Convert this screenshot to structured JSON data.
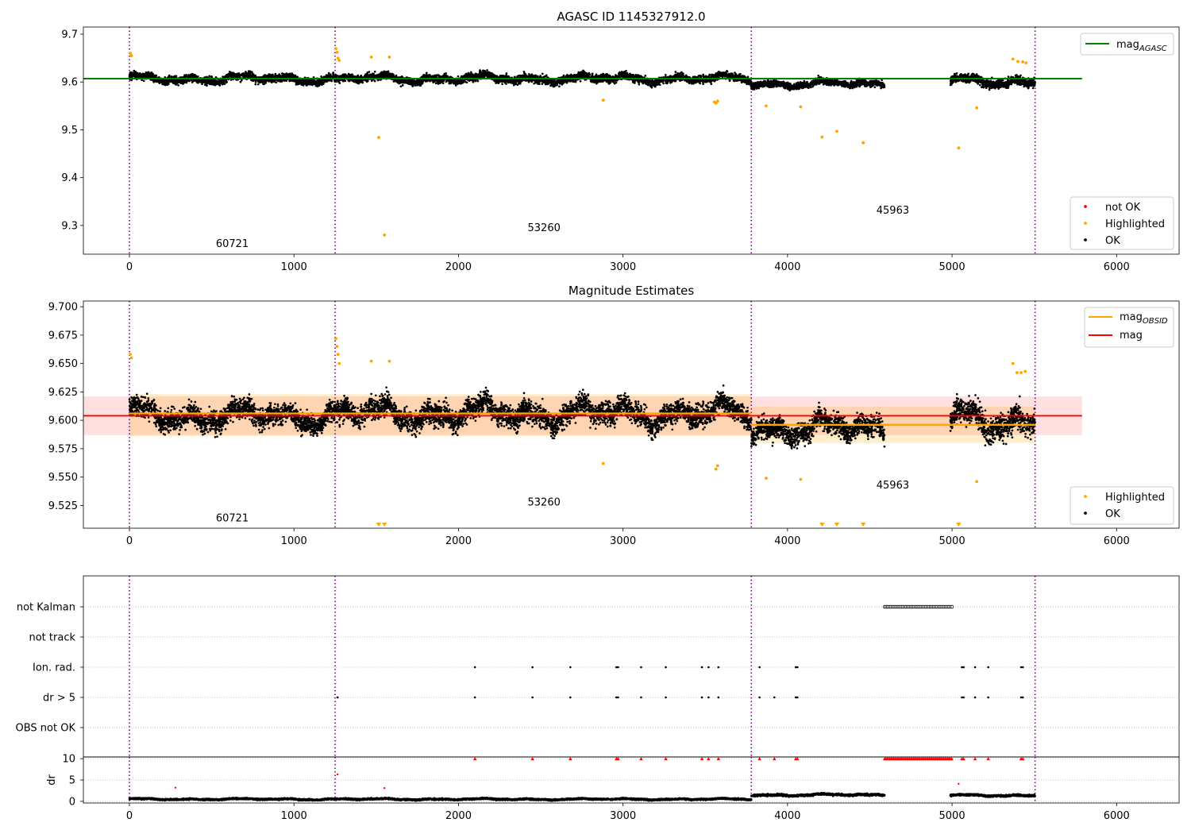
{
  "chart_data": [
    {
      "type": "scatter",
      "title": "AGASC ID 1145327912.0",
      "xlabel": "",
      "ylabel": "",
      "xlim": [
        -280,
        6380
      ],
      "ylim": [
        9.24,
        9.715
      ],
      "xticks": [
        0,
        1000,
        2000,
        3000,
        4000,
        5000,
        6000
      ],
      "yticks": [
        9.3,
        9.4,
        9.5,
        9.6,
        9.7
      ],
      "y_decimals": 1,
      "grid": false,
      "legend_top": {
        "placement": "upper-right",
        "entries": [
          {
            "label_main": "mag",
            "label_sub": "AGASC",
            "color": "#008000",
            "marker": "line"
          }
        ]
      },
      "legend_bottom": {
        "placement": "lower-right",
        "entries": [
          {
            "label": "not OK",
            "color": "#ff0000",
            "marker": "dot"
          },
          {
            "label": "Highlighted",
            "color": "#ffa500",
            "marker": "dot"
          },
          {
            "label": "OK",
            "color": "#000000",
            "marker": "dot"
          }
        ]
      },
      "vlines": [
        0,
        1250,
        3780,
        5505
      ],
      "obsid_labels": [
        {
          "text": "60721",
          "x": 625,
          "y": 9.255
        },
        {
          "text": "53260",
          "x": 2520,
          "y": 9.288
        },
        {
          "text": "45963",
          "x": 4640,
          "y": 9.325
        }
      ],
      "reference_line": {
        "name": "mag_AGASC",
        "value": 9.607,
        "x_range": [
          -280,
          5790
        ],
        "color": "#008000"
      },
      "ok_clusters": [
        {
          "x": [
            0,
            1250
          ],
          "center": 9.607,
          "spread": 0.012
        },
        {
          "x": [
            1250,
            3780
          ],
          "center": 9.607,
          "spread": 0.012
        },
        {
          "x": [
            3780,
            4590
          ],
          "center": 9.596,
          "spread": 0.01
        },
        {
          "x": [
            4990,
            5505
          ],
          "center": 9.602,
          "spread": 0.014
        }
      ],
      "highlighted_points": [
        [
          5,
          9.66
        ],
        [
          12,
          9.655
        ],
        [
          1255,
          9.67
        ],
        [
          1262,
          9.662
        ],
        [
          1268,
          9.65
        ],
        [
          1275,
          9.645
        ],
        [
          1470,
          9.652
        ],
        [
          1515,
          9.484
        ],
        [
          1550,
          9.28
        ],
        [
          1580,
          9.652
        ],
        [
          2880,
          9.562
        ],
        [
          3555,
          9.558
        ],
        [
          3565,
          9.556
        ],
        [
          3575,
          9.56
        ],
        [
          3870,
          9.55
        ],
        [
          4080,
          9.548
        ],
        [
          4210,
          9.485
        ],
        [
          4300,
          9.497
        ],
        [
          4460,
          9.473
        ],
        [
          5040,
          9.462
        ],
        [
          5150,
          9.546
        ],
        [
          5370,
          9.648
        ],
        [
          5400,
          9.643
        ],
        [
          5430,
          9.642
        ],
        [
          5450,
          9.64
        ]
      ]
    },
    {
      "type": "scatter",
      "title": "Magnitude Estimates",
      "xlabel": "",
      "ylabel": "",
      "xlim": [
        -280,
        6380
      ],
      "ylim": [
        9.505,
        9.705
      ],
      "xticks": [
        0,
        1000,
        2000,
        3000,
        4000,
        5000,
        6000
      ],
      "yticks": [
        9.525,
        9.55,
        9.575,
        9.6,
        9.625,
        9.65,
        9.675,
        9.7
      ],
      "y_decimals": 3,
      "grid": false,
      "legend_top": {
        "placement": "upper-right",
        "entries": [
          {
            "label_main": "mag",
            "label_sub": "OBSID",
            "color": "#ffa500",
            "marker": "line"
          },
          {
            "label_main": "mag",
            "label_sub": "",
            "color": "#ff0000",
            "marker": "line"
          }
        ]
      },
      "legend_bottom": {
        "placement": "lower-right",
        "entries": [
          {
            "label": "Highlighted",
            "color": "#ffa500",
            "marker": "dot"
          },
          {
            "label": "OK",
            "color": "#000000",
            "marker": "dot"
          }
        ]
      },
      "vlines": [
        0,
        1250,
        3780,
        5505
      ],
      "obsid_labels": [
        {
          "text": "60721",
          "x": 625,
          "y": 9.511
        },
        {
          "text": "53260",
          "x": 2520,
          "y": 9.525
        },
        {
          "text": "45963",
          "x": 4640,
          "y": 9.54
        }
      ],
      "mag_line": {
        "value": 9.604,
        "band": [
          9.587,
          9.621
        ],
        "x_range": [
          -280,
          5790
        ],
        "color": "#ff0000"
      },
      "obsid_segments": [
        {
          "x_range": [
            0,
            3780
          ],
          "value": 9.606,
          "band": [
            9.586,
            9.623
          ]
        },
        {
          "x_range": [
            3780,
            5505
          ],
          "value": 9.596,
          "band": [
            9.58,
            9.612
          ]
        }
      ],
      "ok_clusters": [
        {
          "x": [
            0,
            1250
          ],
          "center": 9.604,
          "spread": 0.014
        },
        {
          "x": [
            1250,
            3780
          ],
          "center": 9.606,
          "spread": 0.015
        },
        {
          "x": [
            3780,
            4590
          ],
          "center": 9.593,
          "spread": 0.014
        },
        {
          "x": [
            4990,
            5505
          ],
          "center": 9.6,
          "spread": 0.017
        }
      ],
      "highlighted_points": [
        [
          5,
          9.658
        ],
        [
          12,
          9.655
        ],
        [
          1255,
          9.672
        ],
        [
          1262,
          9.665
        ],
        [
          1268,
          9.658
        ],
        [
          1275,
          9.65
        ],
        [
          1470,
          9.652
        ],
        [
          1580,
          9.652
        ],
        [
          2880,
          9.562
        ],
        [
          3565,
          9.557
        ],
        [
          3575,
          9.56
        ],
        [
          3870,
          9.549
        ],
        [
          4080,
          9.548
        ],
        [
          5150,
          9.546
        ],
        [
          5370,
          9.65
        ],
        [
          5395,
          9.642
        ],
        [
          5420,
          9.642
        ],
        [
          5445,
          9.643
        ]
      ],
      "offscale_markers": [
        1515,
        1550,
        4210,
        4300,
        4460,
        5040
      ]
    },
    {
      "type": "scatter",
      "title": "",
      "xlabel": "",
      "ylabel": "",
      "xlim": [
        -280,
        6380
      ],
      "categories": [
        "not Kalman",
        "not track",
        "Ion. rad.",
        "dr > 5",
        "OBS not OK"
      ],
      "grid": true,
      "vlines": [
        0,
        1250,
        3780,
        5505
      ],
      "flags": {
        "not Kalman": {
          "x_range": [
            4590,
            5000
          ],
          "step": 10
        },
        "not track": [],
        "Ion. rad.": [
          2100,
          2450,
          2680,
          2960,
          2970,
          3110,
          3260,
          3480,
          3520,
          3580,
          3830,
          4050,
          4060,
          5060,
          5070,
          5140,
          5220,
          5420,
          5430
        ],
        "dr > 5": [
          1265,
          2100,
          2450,
          2680,
          2960,
          2970,
          3110,
          3260,
          3480,
          3520,
          3580,
          3830,
          3920,
          4050,
          4060,
          5060,
          5070,
          5140,
          5220,
          5420,
          5430
        ],
        "OBS not OK": []
      }
    },
    {
      "type": "scatter",
      "title": "",
      "xlabel": "",
      "ylabel": "dr",
      "xlim": [
        -280,
        6380
      ],
      "ylim": [
        -0.4,
        10.4
      ],
      "yticks": [
        0,
        5,
        10
      ],
      "grid": true,
      "vlines": [
        0,
        1250,
        3780,
        5505
      ],
      "clip_value": 10,
      "ok_clusters": [
        {
          "x": [
            0,
            3780
          ],
          "center": 0.5,
          "spread": 0.25
        },
        {
          "x": [
            3780,
            4590
          ],
          "center": 1.5,
          "spread": 0.35
        },
        {
          "x": [
            4990,
            5505
          ],
          "center": 1.4,
          "spread": 0.3
        }
      ],
      "clipped_x": [
        2100,
        2450,
        2680,
        2960,
        2970,
        3110,
        3260,
        3480,
        3520,
        3580,
        3830,
        3920,
        4050,
        4060,
        5060,
        5070,
        5140,
        5220,
        5420,
        5430
      ],
      "clipped_dense_range": [
        4590,
        5000
      ],
      "red_points": [
        [
          280,
          3.2
        ],
        [
          1265,
          6.3
        ],
        [
          1550,
          3.1
        ],
        [
          5040,
          4.1
        ]
      ]
    }
  ]
}
